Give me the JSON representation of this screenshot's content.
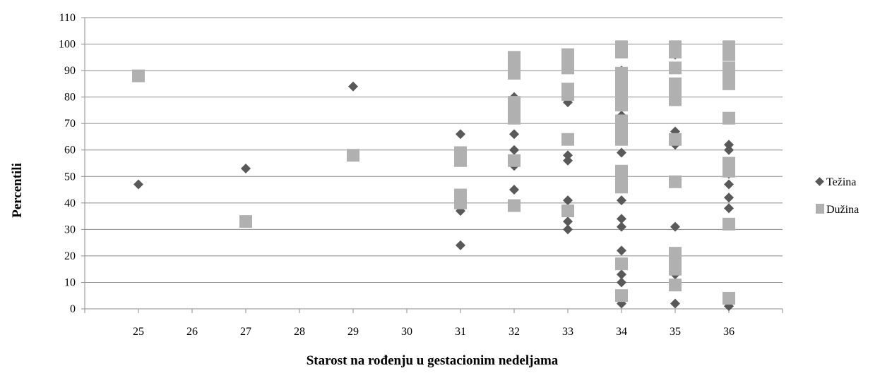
{
  "chart_data": {
    "type": "scatter",
    "title": "",
    "xlabel": "Starost na rođenju u gestacionim nedeljama",
    "ylabel": "Percentili",
    "x_categories": [
      "25",
      "26",
      "27",
      "28",
      "29",
      "30",
      "31",
      "32",
      "33",
      "34",
      "35",
      "36"
    ],
    "ylim": [
      0,
      110
    ],
    "yticks": [
      0,
      10,
      20,
      30,
      40,
      50,
      60,
      70,
      80,
      90,
      100,
      110
    ],
    "grid": "horizontal",
    "legend_position": "right",
    "series": [
      {
        "name": "Težina",
        "marker": "diamond",
        "color": "#595959",
        "points": [
          {
            "x": "25",
            "y": 47
          },
          {
            "x": "27",
            "y": 53
          },
          {
            "x": "29",
            "y": 84
          },
          {
            "x": "31",
            "y": 66
          },
          {
            "x": "31",
            "y": 37
          },
          {
            "x": "31",
            "y": 24
          },
          {
            "x": "32",
            "y": 80
          },
          {
            "x": "32",
            "y": 72
          },
          {
            "x": "32",
            "y": 66
          },
          {
            "x": "32",
            "y": 60
          },
          {
            "x": "32",
            "y": 54
          },
          {
            "x": "32",
            "y": 45
          },
          {
            "x": "33",
            "y": 78
          },
          {
            "x": "33",
            "y": 58
          },
          {
            "x": "33",
            "y": 56
          },
          {
            "x": "33",
            "y": 41
          },
          {
            "x": "33",
            "y": 33
          },
          {
            "x": "33",
            "y": 30
          },
          {
            "x": "34",
            "y": 90
          },
          {
            "x": "34",
            "y": 87
          },
          {
            "x": "34",
            "y": 73
          },
          {
            "x": "34",
            "y": 66
          },
          {
            "x": "34",
            "y": 59
          },
          {
            "x": "34",
            "y": 41
          },
          {
            "x": "34",
            "y": 34
          },
          {
            "x": "34",
            "y": 31
          },
          {
            "x": "34",
            "y": 22
          },
          {
            "x": "34",
            "y": 13
          },
          {
            "x": "34",
            "y": 10
          },
          {
            "x": "34",
            "y": 2
          },
          {
            "x": "35",
            "y": 96
          },
          {
            "x": "35",
            "y": 79
          },
          {
            "x": "35",
            "y": 67
          },
          {
            "x": "35",
            "y": 62
          },
          {
            "x": "35",
            "y": 31
          },
          {
            "x": "35",
            "y": 13
          },
          {
            "x": "35",
            "y": 2
          },
          {
            "x": "36",
            "y": 90
          },
          {
            "x": "36",
            "y": 62
          },
          {
            "x": "36",
            "y": 60
          },
          {
            "x": "36",
            "y": 51
          },
          {
            "x": "36",
            "y": 47
          },
          {
            "x": "36",
            "y": 42
          },
          {
            "x": "36",
            "y": 38
          },
          {
            "x": "36",
            "y": 1
          }
        ]
      },
      {
        "name": "Dužina",
        "marker": "square",
        "color": "#b0b0b0",
        "points": [
          {
            "x": "25",
            "y": 88
          },
          {
            "x": "27",
            "y": 33
          },
          {
            "x": "29",
            "y": 58
          },
          {
            "x": "31",
            "y": 59
          },
          {
            "x": "31",
            "y": 56
          },
          {
            "x": "31",
            "y": 43
          },
          {
            "x": "31",
            "y": 40
          },
          {
            "x": "32",
            "y": 95
          },
          {
            "x": "32",
            "y": 92
          },
          {
            "x": "32",
            "y": 89
          },
          {
            "x": "32",
            "y": 78
          },
          {
            "x": "32",
            "y": 75
          },
          {
            "x": "32",
            "y": 72
          },
          {
            "x": "32",
            "y": 56
          },
          {
            "x": "32",
            "y": 39
          },
          {
            "x": "33",
            "y": 96
          },
          {
            "x": "33",
            "y": 93
          },
          {
            "x": "33",
            "y": 91
          },
          {
            "x": "33",
            "y": 83
          },
          {
            "x": "33",
            "y": 81
          },
          {
            "x": "33",
            "y": 64
          },
          {
            "x": "33",
            "y": 37
          },
          {
            "x": "34",
            "y": 99
          },
          {
            "x": "34",
            "y": 97
          },
          {
            "x": "34",
            "y": 89
          },
          {
            "x": "34",
            "y": 86
          },
          {
            "x": "34",
            "y": 83
          },
          {
            "x": "34",
            "y": 80
          },
          {
            "x": "34",
            "y": 77
          },
          {
            "x": "34",
            "y": 71
          },
          {
            "x": "34",
            "y": 67
          },
          {
            "x": "34",
            "y": 64
          },
          {
            "x": "34",
            "y": 52
          },
          {
            "x": "34",
            "y": 49
          },
          {
            "x": "34",
            "y": 46
          },
          {
            "x": "34",
            "y": 17
          },
          {
            "x": "34",
            "y": 5
          },
          {
            "x": "35",
            "y": 99
          },
          {
            "x": "35",
            "y": 97
          },
          {
            "x": "35",
            "y": 91
          },
          {
            "x": "35",
            "y": 85
          },
          {
            "x": "35",
            "y": 82
          },
          {
            "x": "35",
            "y": 79
          },
          {
            "x": "35",
            "y": 64
          },
          {
            "x": "35",
            "y": 48
          },
          {
            "x": "35",
            "y": 21
          },
          {
            "x": "35",
            "y": 17
          },
          {
            "x": "35",
            "y": 15
          },
          {
            "x": "35",
            "y": 9
          },
          {
            "x": "36",
            "y": 99
          },
          {
            "x": "36",
            "y": 96
          },
          {
            "x": "36",
            "y": 91
          },
          {
            "x": "36",
            "y": 88
          },
          {
            "x": "36",
            "y": 85
          },
          {
            "x": "36",
            "y": 72
          },
          {
            "x": "36",
            "y": 55
          },
          {
            "x": "36",
            "y": 52
          },
          {
            "x": "36",
            "y": 32
          },
          {
            "x": "36",
            "y": 4
          }
        ]
      }
    ]
  }
}
